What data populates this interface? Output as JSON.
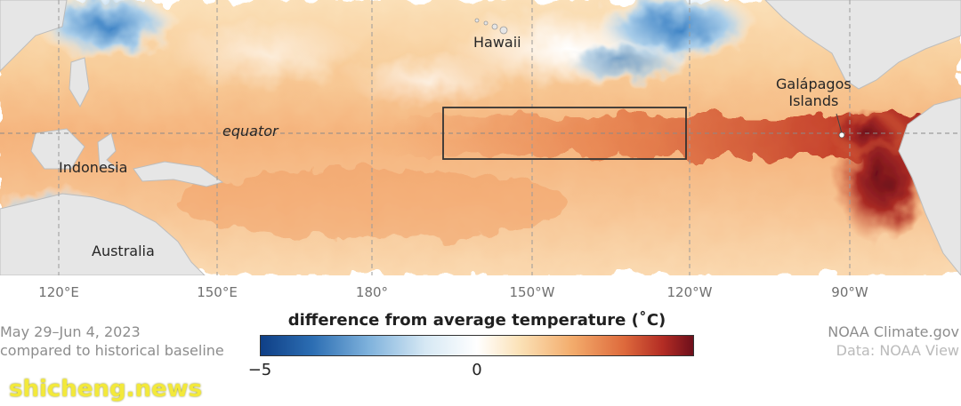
{
  "map": {
    "labels": {
      "hawaii": "Hawaii",
      "galapagos_line1": "Galápagos",
      "galapagos_line2": "Islands",
      "equator": "equator",
      "indonesia": "Indonesia",
      "australia": "Australia"
    },
    "longitude_ticks": [
      "120°E",
      "150°E",
      "180°",
      "150°W",
      "120°W",
      "90°W"
    ],
    "colors": {
      "cold": "#0f3f86",
      "neutral": "#ffffff",
      "warm": "#de6a3c",
      "hot": "#6e0f1b",
      "land": "#e6e6e6"
    }
  },
  "footer": {
    "date": "May 29–Jun 4, 2023",
    "baseline": "compared to historical baseline",
    "legend_title": "difference from average temperature (˚C)",
    "scale_min": "−5",
    "scale_mid": "0",
    "credit_line1": "NOAA Climate.gov",
    "credit_line2": "Data: NOAA View"
  },
  "watermark": "shicheng.news"
}
